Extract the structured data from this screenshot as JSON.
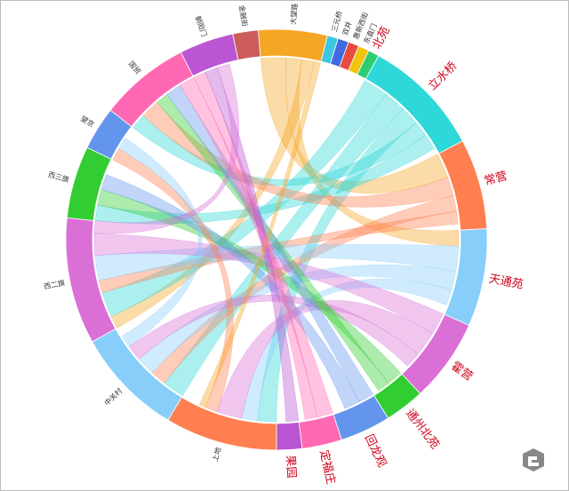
{
  "chart_data": {
    "type": "chord",
    "nodes": [
      {
        "name": "大望路",
        "value": 19,
        "color": "#f5a623"
      },
      {
        "name": "三元桥",
        "value": 3,
        "color": "#3ec6e0"
      },
      {
        "name": "双井",
        "value": 3,
        "color": "#4169e1"
      },
      {
        "name": "惠新西街",
        "value": 3,
        "color": "#e74c3c"
      },
      {
        "name": "东直门",
        "value": 3,
        "color": "#f1c40f"
      },
      {
        "name": "北苑",
        "value": 3,
        "color": "#2ecc71"
      },
      {
        "name": "立水桥",
        "value": 33,
        "color": "#2fd8d8"
      },
      {
        "name": "常营",
        "value": 25,
        "color": "#ff7f50"
      },
      {
        "name": "天通苑",
        "value": 27,
        "color": "#87cefa"
      },
      {
        "name": "霍营",
        "value": 23,
        "color": "#da70d6"
      },
      {
        "name": "通州北苑",
        "value": 11,
        "color": "#32cd32"
      },
      {
        "name": "回龙观",
        "value": 14,
        "color": "#6495ed"
      },
      {
        "name": "定福庄",
        "value": 11,
        "color": "#ff69b4"
      },
      {
        "name": "果园",
        "value": 7,
        "color": "#ba55d3"
      },
      {
        "name": "上地",
        "value": 31,
        "color": "#ff7f50"
      },
      {
        "name": "中关村",
        "value": 30,
        "color": "#87cefa"
      },
      {
        "name": "西二旗",
        "value": 35,
        "color": "#da70d6"
      },
      {
        "name": "西三旗",
        "value": 20,
        "color": "#32cd32"
      },
      {
        "name": "望京",
        "value": 12,
        "color": "#6495ed"
      },
      {
        "name": "国贸",
        "value": 25,
        "color": "#ff69b4"
      },
      {
        "name": "朝阳门",
        "value": 15,
        "color": "#ba55d3"
      },
      {
        "name": "金融街",
        "value": 7,
        "color": "#cd5c5c"
      }
    ],
    "links": [
      {
        "source": 0,
        "target": 7,
        "value": 8
      },
      {
        "source": 0,
        "target": 8,
        "value": 5
      },
      {
        "source": 0,
        "target": 16,
        "value": 4
      },
      {
        "source": 6,
        "target": 16,
        "value": 8
      },
      {
        "source": 6,
        "target": 15,
        "value": 7
      },
      {
        "source": 6,
        "target": 14,
        "value": 6
      },
      {
        "source": 6,
        "target": 19,
        "value": 5
      },
      {
        "source": 6,
        "target": 17,
        "value": 5
      },
      {
        "source": 7,
        "target": 19,
        "value": 6
      },
      {
        "source": 7,
        "target": 15,
        "value": 5
      },
      {
        "source": 7,
        "target": 16,
        "value": 4
      },
      {
        "source": 8,
        "target": 16,
        "value": 8
      },
      {
        "source": 8,
        "target": 15,
        "value": 6
      },
      {
        "source": 8,
        "target": 14,
        "value": 5
      },
      {
        "source": 9,
        "target": 16,
        "value": 7
      },
      {
        "source": 9,
        "target": 14,
        "value": 8
      },
      {
        "source": 9,
        "target": 15,
        "value": 5
      },
      {
        "source": 10,
        "target": 17,
        "value": 5
      },
      {
        "source": 10,
        "target": 19,
        "value": 4
      },
      {
        "source": 11,
        "target": 19,
        "value": 5
      },
      {
        "source": 11,
        "target": 17,
        "value": 5
      },
      {
        "source": 12,
        "target": 19,
        "value": 5
      },
      {
        "source": 12,
        "target": 20,
        "value": 4
      },
      {
        "source": 13,
        "target": 20,
        "value": 4
      },
      {
        "source": 14,
        "target": 18,
        "value": 4
      },
      {
        "source": 15,
        "target": 18,
        "value": 4
      },
      {
        "source": 16,
        "target": 20,
        "value": 4
      },
      {
        "source": 0,
        "target": 14,
        "value": 2
      }
    ]
  }
}
